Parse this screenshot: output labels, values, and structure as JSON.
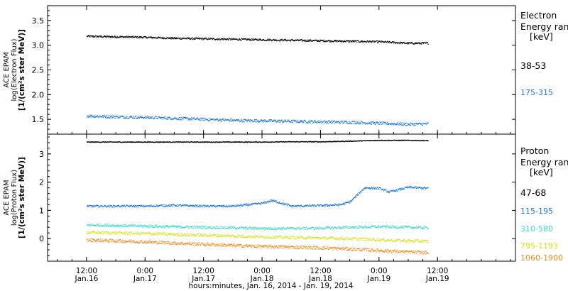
{
  "chart_data": [
    {
      "type": "scatter",
      "panel": "electron",
      "ylabel_lines": [
        "ACE EPAM",
        "log(Electron Flux)",
        "[1/(cm²s ster MeV)]"
      ],
      "ylim": [
        1.2,
        3.8
      ],
      "yticks": [
        1.5,
        2.0,
        2.5,
        3.0,
        3.5
      ],
      "ytick_labels": [
        "1.5",
        "2.0",
        "2.5",
        "3.0",
        "3.5"
      ],
      "legend_title": [
        "Electron",
        "Energy ran",
        "[keV]"
      ],
      "series": [
        {
          "name": "38-53",
          "color": "#000000",
          "x": [
            0,
            6,
            12,
            18,
            24,
            30,
            36,
            42,
            48,
            54,
            60,
            66,
            70
          ],
          "y": [
            3.18,
            3.17,
            3.16,
            3.14,
            3.13,
            3.12,
            3.11,
            3.1,
            3.09,
            3.08,
            3.07,
            3.04,
            3.04
          ]
        },
        {
          "name": "175-315",
          "color": "#1f78d4",
          "x": [
            0,
            6,
            12,
            18,
            24,
            30,
            36,
            42,
            48,
            54,
            60,
            66,
            70
          ],
          "y": [
            1.57,
            1.55,
            1.54,
            1.52,
            1.5,
            1.48,
            1.47,
            1.46,
            1.45,
            1.44,
            1.42,
            1.4,
            1.41
          ]
        }
      ]
    },
    {
      "type": "scatter",
      "panel": "proton",
      "ylabel_lines": [
        "ACE EPAM",
        "log(Proton Flux)",
        "[1/(cm²s ster MeV)]"
      ],
      "ylim": [
        -0.8,
        3.7
      ],
      "yticks": [
        0,
        1,
        2,
        3
      ],
      "ytick_labels": [
        "0",
        "1",
        "2",
        "3"
      ],
      "legend_title": [
        "Proton",
        "Energy ran",
        "[keV]"
      ],
      "series": [
        {
          "name": "47-68",
          "color": "#000000",
          "x": [
            0,
            6,
            12,
            18,
            24,
            30,
            36,
            42,
            48,
            54,
            60,
            66,
            70
          ],
          "y": [
            3.42,
            3.42,
            3.42,
            3.42,
            3.42,
            3.42,
            3.42,
            3.43,
            3.43,
            3.45,
            3.48,
            3.48,
            3.47
          ]
        },
        {
          "name": "115-195",
          "color": "#1f78d4",
          "x": [
            0,
            6,
            12,
            18,
            24,
            30,
            36,
            38,
            42,
            48,
            52,
            54,
            57,
            60,
            62,
            66,
            70
          ],
          "y": [
            1.15,
            1.15,
            1.15,
            1.18,
            1.15,
            1.15,
            1.25,
            1.35,
            1.15,
            1.17,
            1.2,
            1.3,
            1.8,
            1.78,
            1.65,
            1.82,
            1.78
          ]
        },
        {
          "name": "310-580",
          "color": "#3ad8c8",
          "x": [
            0,
            6,
            12,
            18,
            24,
            30,
            36,
            42,
            48,
            54,
            60,
            66,
            70
          ],
          "y": [
            0.48,
            0.46,
            0.44,
            0.42,
            0.4,
            0.38,
            0.36,
            0.36,
            0.37,
            0.4,
            0.42,
            0.4,
            0.38
          ]
        },
        {
          "name": "795-1193",
          "color": "#d7e01a",
          "x": [
            0,
            6,
            12,
            18,
            24,
            30,
            36,
            42,
            48,
            54,
            60,
            66,
            70
          ],
          "y": [
            0.22,
            0.2,
            0.18,
            0.15,
            0.12,
            0.09,
            0.06,
            0.04,
            0.02,
            0.0,
            -0.04,
            -0.08,
            -0.1
          ]
        },
        {
          "name": "1060-1900",
          "color": "#f08a1c",
          "x": [
            0,
            6,
            12,
            18,
            24,
            30,
            36,
            42,
            48,
            54,
            60,
            66,
            70
          ],
          "y": [
            -0.05,
            -0.08,
            -0.12,
            -0.16,
            -0.2,
            -0.24,
            -0.28,
            -0.3,
            -0.33,
            -0.37,
            -0.42,
            -0.47,
            -0.5
          ]
        }
      ]
    }
  ],
  "xaxis": {
    "xlim": [
      -8,
      88
    ],
    "ticks": [
      {
        "x": 0,
        "time": "12:00",
        "date": "Jan.16"
      },
      {
        "x": 12,
        "time": "0:00",
        "date": "Jan.17"
      },
      {
        "x": 24,
        "time": "12:00",
        "date": "Jan.17"
      },
      {
        "x": 36,
        "time": "0:00",
        "date": "Jan.18"
      },
      {
        "x": 48,
        "time": "12:00",
        "date": "Jan.18"
      },
      {
        "x": 60,
        "time": "0:00",
        "date": "Jan.19"
      },
      {
        "x": 72,
        "time": "12:00",
        "date": "Jan.19"
      }
    ],
    "label": "hours:minutes, Jan. 16, 2014 - Jan. 19, 2014"
  }
}
